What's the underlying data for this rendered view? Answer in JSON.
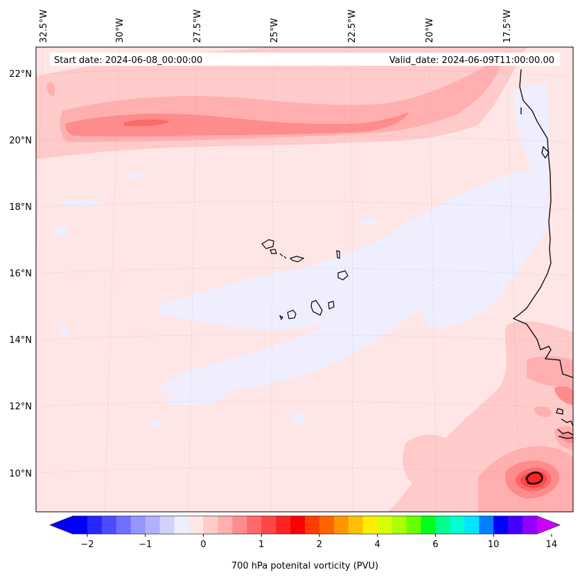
{
  "map": {
    "start_date": "Start date: 2024-06-08_00:00:00",
    "valid_date": "Valid_date: 2024-06-09T11:00:00.00",
    "lon_labels": [
      "32.5°W",
      "30°W",
      "27.5°W",
      "25°W",
      "22.5°W",
      "20°W",
      "17.5°W"
    ],
    "lat_labels": [
      "22°N",
      "20°N",
      "18°N",
      "16°N",
      "14°N",
      "12°N",
      "10°N"
    ]
  },
  "colorbar": {
    "title": "700 hPa potenital vorticity (PVU)",
    "tick_labels": [
      "−2",
      "−1",
      "0",
      "1",
      "2",
      "4",
      "6",
      "10",
      "14"
    ],
    "colors": [
      "#0000ff",
      "#2626ff",
      "#4b4bff",
      "#7070ff",
      "#9595ff",
      "#b0b0ff",
      "#d2d2ff",
      "#eeeeff",
      "#ffe6e6",
      "#ffcaca",
      "#ffafaf",
      "#ff8c8c",
      "#ff6969",
      "#ff4646",
      "#ff2424",
      "#ff0000",
      "#ff3d00",
      "#ff6400",
      "#ff9600",
      "#ffc000",
      "#ffee00",
      "#d8ff00",
      "#aaff00",
      "#66ff00",
      "#00ff1a",
      "#00ff8c",
      "#00ffd0",
      "#00e6ff",
      "#0080ff",
      "#0000ff",
      "#4400ff",
      "#9000ff"
    ],
    "under_color": "#0000ff",
    "over_color": "#cc00ff"
  }
}
